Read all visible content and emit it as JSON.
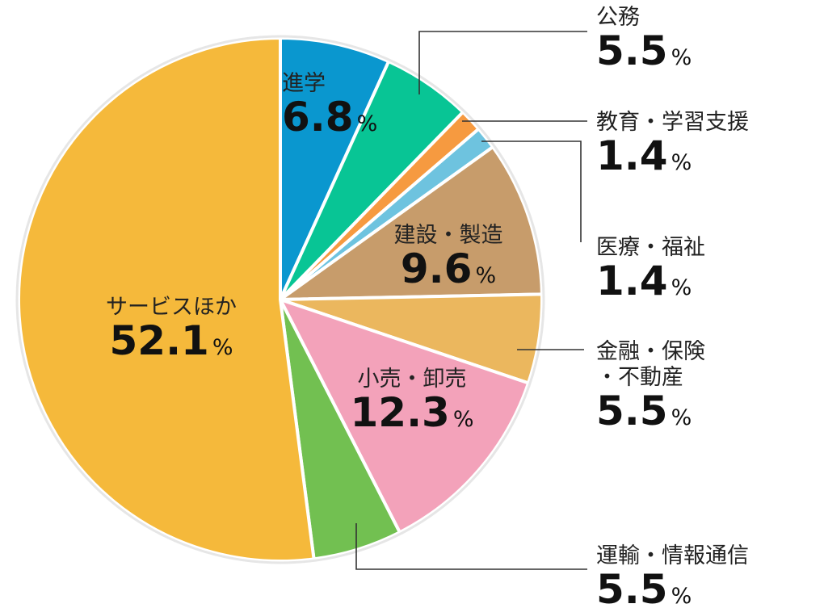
{
  "chart_data": {
    "type": "pie",
    "unit": "%",
    "slices": [
      {
        "label": "進学",
        "value": 6.8,
        "color": "#0a97cf"
      },
      {
        "label": "公務",
        "value": 5.5,
        "color": "#08c595"
      },
      {
        "label": "教育・学習支援",
        "value": 1.4,
        "color": "#f69a40"
      },
      {
        "label": "医療・福祉",
        "value": 1.4,
        "color": "#6ec3df"
      },
      {
        "label": "建設・製造",
        "value": 9.6,
        "color": "#c79c6b"
      },
      {
        "label": "金融・保険・不動産",
        "value": 5.5,
        "color": "#ebb75e"
      },
      {
        "label": "小売・卸売",
        "value": 12.3,
        "color": "#f3a2ba"
      },
      {
        "label": "運輸・情報通信",
        "value": 5.5,
        "color": "#72c051"
      },
      {
        "label": "サービスほか",
        "value": 52.1,
        "color": "#f5b93b"
      }
    ]
  }
}
